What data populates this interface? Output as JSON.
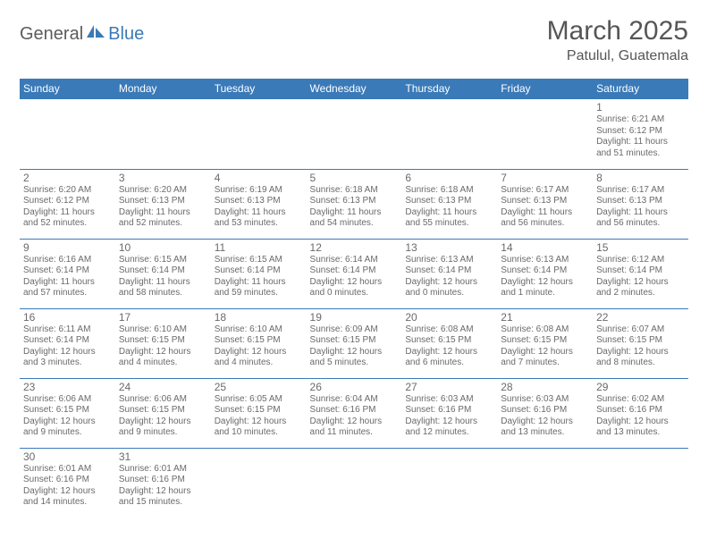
{
  "logo": {
    "part1": "General",
    "part2": "Blue"
  },
  "title": "March 2025",
  "location": "Patulul, Guatemala",
  "colors": {
    "header_bg": "#3a7ab8",
    "header_text": "#ffffff",
    "cell_border": "#3a7ab8",
    "text": "#6a6a6a",
    "logo_gray": "#5c5c5c",
    "logo_blue": "#3a7ab8",
    "background": "#ffffff"
  },
  "typography": {
    "title_fontsize": 30,
    "location_fontsize": 16,
    "dayheader_fontsize": 12,
    "daynum_fontsize": 12,
    "body_fontsize": 10
  },
  "day_headers": [
    "Sunday",
    "Monday",
    "Tuesday",
    "Wednesday",
    "Thursday",
    "Friday",
    "Saturday"
  ],
  "weeks": [
    [
      null,
      null,
      null,
      null,
      null,
      null,
      {
        "n": "1",
        "sr": "Sunrise: 6:21 AM",
        "ss": "Sunset: 6:12 PM",
        "dl": "Daylight: 11 hours and 51 minutes."
      }
    ],
    [
      {
        "n": "2",
        "sr": "Sunrise: 6:20 AM",
        "ss": "Sunset: 6:12 PM",
        "dl": "Daylight: 11 hours and 52 minutes."
      },
      {
        "n": "3",
        "sr": "Sunrise: 6:20 AM",
        "ss": "Sunset: 6:13 PM",
        "dl": "Daylight: 11 hours and 52 minutes."
      },
      {
        "n": "4",
        "sr": "Sunrise: 6:19 AM",
        "ss": "Sunset: 6:13 PM",
        "dl": "Daylight: 11 hours and 53 minutes."
      },
      {
        "n": "5",
        "sr": "Sunrise: 6:18 AM",
        "ss": "Sunset: 6:13 PM",
        "dl": "Daylight: 11 hours and 54 minutes."
      },
      {
        "n": "6",
        "sr": "Sunrise: 6:18 AM",
        "ss": "Sunset: 6:13 PM",
        "dl": "Daylight: 11 hours and 55 minutes."
      },
      {
        "n": "7",
        "sr": "Sunrise: 6:17 AM",
        "ss": "Sunset: 6:13 PM",
        "dl": "Daylight: 11 hours and 56 minutes."
      },
      {
        "n": "8",
        "sr": "Sunrise: 6:17 AM",
        "ss": "Sunset: 6:13 PM",
        "dl": "Daylight: 11 hours and 56 minutes."
      }
    ],
    [
      {
        "n": "9",
        "sr": "Sunrise: 6:16 AM",
        "ss": "Sunset: 6:14 PM",
        "dl": "Daylight: 11 hours and 57 minutes."
      },
      {
        "n": "10",
        "sr": "Sunrise: 6:15 AM",
        "ss": "Sunset: 6:14 PM",
        "dl": "Daylight: 11 hours and 58 minutes."
      },
      {
        "n": "11",
        "sr": "Sunrise: 6:15 AM",
        "ss": "Sunset: 6:14 PM",
        "dl": "Daylight: 11 hours and 59 minutes."
      },
      {
        "n": "12",
        "sr": "Sunrise: 6:14 AM",
        "ss": "Sunset: 6:14 PM",
        "dl": "Daylight: 12 hours and 0 minutes."
      },
      {
        "n": "13",
        "sr": "Sunrise: 6:13 AM",
        "ss": "Sunset: 6:14 PM",
        "dl": "Daylight: 12 hours and 0 minutes."
      },
      {
        "n": "14",
        "sr": "Sunrise: 6:13 AM",
        "ss": "Sunset: 6:14 PM",
        "dl": "Daylight: 12 hours and 1 minute."
      },
      {
        "n": "15",
        "sr": "Sunrise: 6:12 AM",
        "ss": "Sunset: 6:14 PM",
        "dl": "Daylight: 12 hours and 2 minutes."
      }
    ],
    [
      {
        "n": "16",
        "sr": "Sunrise: 6:11 AM",
        "ss": "Sunset: 6:14 PM",
        "dl": "Daylight: 12 hours and 3 minutes."
      },
      {
        "n": "17",
        "sr": "Sunrise: 6:10 AM",
        "ss": "Sunset: 6:15 PM",
        "dl": "Daylight: 12 hours and 4 minutes."
      },
      {
        "n": "18",
        "sr": "Sunrise: 6:10 AM",
        "ss": "Sunset: 6:15 PM",
        "dl": "Daylight: 12 hours and 4 minutes."
      },
      {
        "n": "19",
        "sr": "Sunrise: 6:09 AM",
        "ss": "Sunset: 6:15 PM",
        "dl": "Daylight: 12 hours and 5 minutes."
      },
      {
        "n": "20",
        "sr": "Sunrise: 6:08 AM",
        "ss": "Sunset: 6:15 PM",
        "dl": "Daylight: 12 hours and 6 minutes."
      },
      {
        "n": "21",
        "sr": "Sunrise: 6:08 AM",
        "ss": "Sunset: 6:15 PM",
        "dl": "Daylight: 12 hours and 7 minutes."
      },
      {
        "n": "22",
        "sr": "Sunrise: 6:07 AM",
        "ss": "Sunset: 6:15 PM",
        "dl": "Daylight: 12 hours and 8 minutes."
      }
    ],
    [
      {
        "n": "23",
        "sr": "Sunrise: 6:06 AM",
        "ss": "Sunset: 6:15 PM",
        "dl": "Daylight: 12 hours and 9 minutes."
      },
      {
        "n": "24",
        "sr": "Sunrise: 6:06 AM",
        "ss": "Sunset: 6:15 PM",
        "dl": "Daylight: 12 hours and 9 minutes."
      },
      {
        "n": "25",
        "sr": "Sunrise: 6:05 AM",
        "ss": "Sunset: 6:15 PM",
        "dl": "Daylight: 12 hours and 10 minutes."
      },
      {
        "n": "26",
        "sr": "Sunrise: 6:04 AM",
        "ss": "Sunset: 6:16 PM",
        "dl": "Daylight: 12 hours and 11 minutes."
      },
      {
        "n": "27",
        "sr": "Sunrise: 6:03 AM",
        "ss": "Sunset: 6:16 PM",
        "dl": "Daylight: 12 hours and 12 minutes."
      },
      {
        "n": "28",
        "sr": "Sunrise: 6:03 AM",
        "ss": "Sunset: 6:16 PM",
        "dl": "Daylight: 12 hours and 13 minutes."
      },
      {
        "n": "29",
        "sr": "Sunrise: 6:02 AM",
        "ss": "Sunset: 6:16 PM",
        "dl": "Daylight: 12 hours and 13 minutes."
      }
    ],
    [
      {
        "n": "30",
        "sr": "Sunrise: 6:01 AM",
        "ss": "Sunset: 6:16 PM",
        "dl": "Daylight: 12 hours and 14 minutes."
      },
      {
        "n": "31",
        "sr": "Sunrise: 6:01 AM",
        "ss": "Sunset: 6:16 PM",
        "dl": "Daylight: 12 hours and 15 minutes."
      },
      null,
      null,
      null,
      null,
      null
    ]
  ]
}
